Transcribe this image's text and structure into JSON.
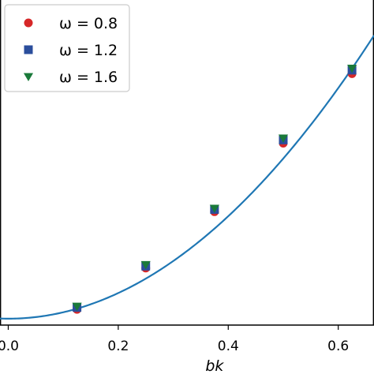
{
  "chart_data": {
    "type": "scatter",
    "xlabel": "bk",
    "ylabel": "",
    "xlim": [
      -0.015,
      0.665
    ],
    "ylim": [
      -0.002,
      0.0995
    ],
    "x_ticks": [
      0.0,
      0.2,
      0.4,
      0.6
    ],
    "x_tick_labels": [
      "0.0",
      "0.2",
      "0.4",
      "0.6"
    ],
    "grid": false,
    "legend_position": "top-left",
    "x": [
      0.125,
      0.25,
      0.375,
      0.5,
      0.625
    ],
    "series": [
      {
        "name": "ω = 0.8",
        "marker": "circle",
        "color": "#d62728",
        "values": [
          0.0029,
          0.0158,
          0.0334,
          0.0548,
          0.0765
        ]
      },
      {
        "name": "ω = 1.2",
        "marker": "square",
        "color": "#2b4e9c",
        "values": [
          0.0035,
          0.0164,
          0.0341,
          0.0558,
          0.0776
        ]
      },
      {
        "name": "ω = 1.6",
        "marker": "triangle-down",
        "color": "#1a7a3a",
        "values": [
          0.0039,
          0.0169,
          0.0345,
          0.0564,
          0.0782
        ]
      }
    ],
    "fit_line": {
      "color": "#1f77b4",
      "coefficients": [
        0.0,
        0.0,
        0.2
      ]
    }
  }
}
